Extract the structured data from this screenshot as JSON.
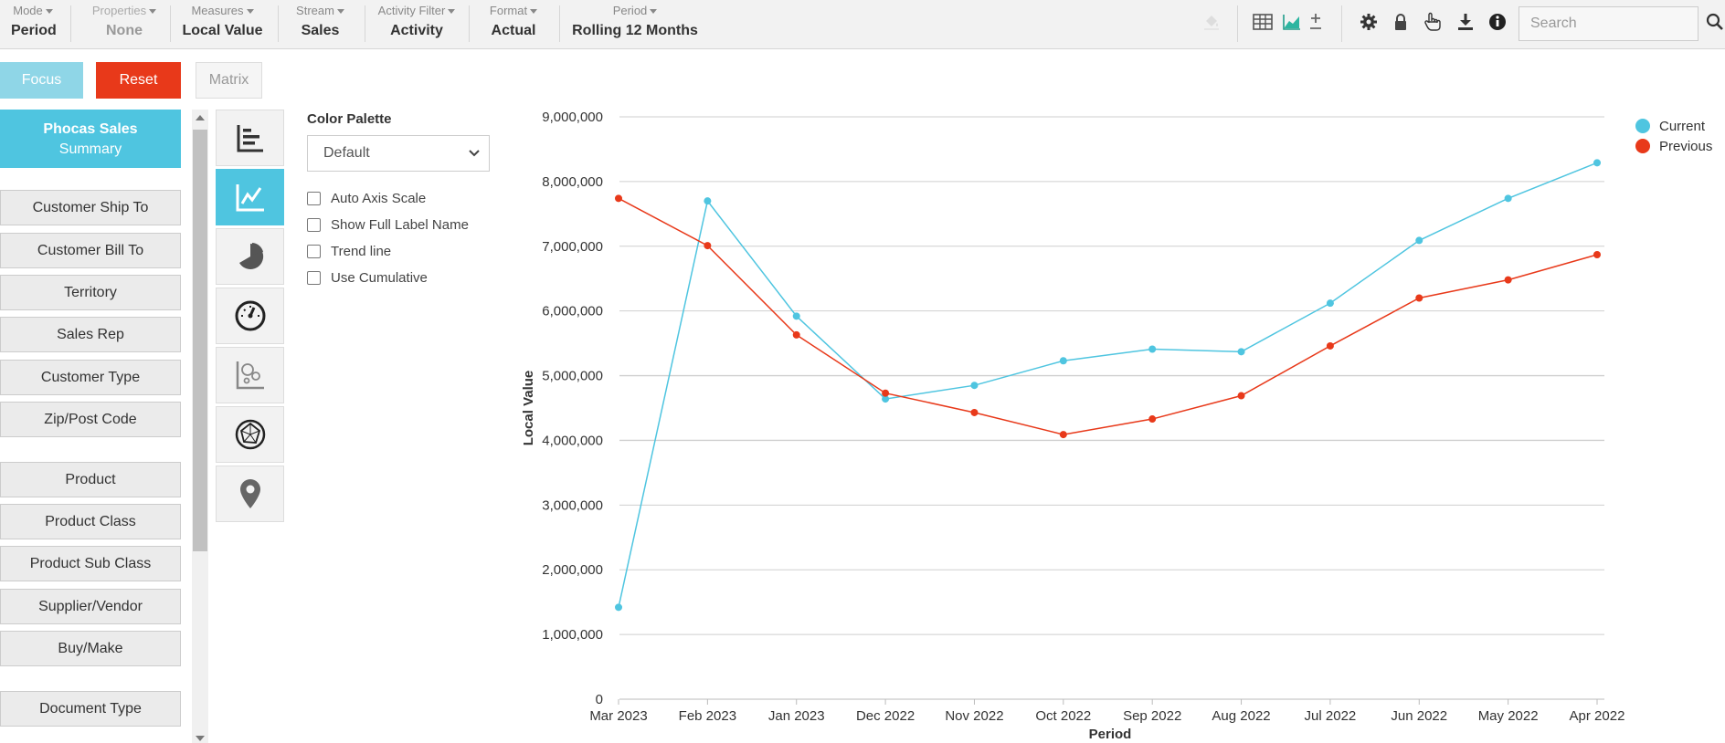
{
  "toolbar": {
    "groups": [
      {
        "label": "Mode",
        "value": "Period"
      },
      {
        "label": "Properties",
        "value": "None"
      },
      {
        "label": "Measures",
        "value": "Local Value"
      },
      {
        "label": "Stream",
        "value": "Sales"
      },
      {
        "label": "Activity Filter",
        "value": "Activity"
      },
      {
        "label": "Format",
        "value": "Actual"
      },
      {
        "label": "Period",
        "value": "Rolling 12 Months"
      }
    ],
    "search_placeholder": "Search"
  },
  "buttons": {
    "focus": "Focus",
    "reset": "Reset",
    "matrix": "Matrix"
  },
  "sidebar": {
    "title_line1": "Phocas Sales",
    "title_line2": "Summary",
    "items": [
      "Customer Ship To",
      "Customer Bill To",
      "Territory",
      "Sales Rep",
      "Customer Type",
      "Zip/Post Code",
      "Product",
      "Product Class",
      "Product Sub Class",
      "Supplier/Vendor",
      "Buy/Make",
      "Document Type"
    ]
  },
  "options": {
    "palette_label": "Color Palette",
    "palette_value": "Default",
    "checkboxes": [
      "Auto Axis Scale",
      "Show Full Label Name",
      "Trend line",
      "Use Cumulative"
    ]
  },
  "colors": {
    "current": "#4fc5e0",
    "previous": "#e8391a",
    "accent": "#4fc5e0"
  },
  "chart_data": {
    "type": "line",
    "xlabel": "Period",
    "ylabel": "Local Value",
    "categories": [
      "Mar 2023",
      "Feb 2023",
      "Jan 2023",
      "Dec 2022",
      "Nov 2022",
      "Oct 2022",
      "Sep 2022",
      "Aug 2022",
      "Jul 2022",
      "Jun 2022",
      "May 2022",
      "Apr 2022"
    ],
    "ylim": [
      0,
      9000000
    ],
    "yticks": [
      "0",
      "1,000,000",
      "2,000,000",
      "3,000,000",
      "4,000,000",
      "5,000,000",
      "6,000,000",
      "7,000,000",
      "8,000,000",
      "9,000,000"
    ],
    "grid": true,
    "legend_position": "top-right",
    "series": [
      {
        "name": "Current",
        "values": [
          1420000,
          7700000,
          5920000,
          4640000,
          4850000,
          5230000,
          5410000,
          5370000,
          6120000,
          7090000,
          7740000,
          8290000
        ]
      },
      {
        "name": "Previous",
        "values": [
          7740000,
          7010000,
          5630000,
          4730000,
          4430000,
          4090000,
          4330000,
          4690000,
          5460000,
          6200000,
          6480000,
          6870000
        ]
      }
    ]
  }
}
